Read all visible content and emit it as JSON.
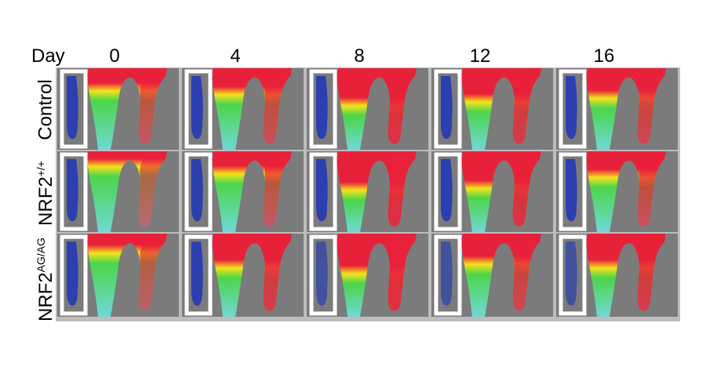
{
  "figure": {
    "axis_label": "Day",
    "columns": [
      "0",
      "4",
      "8",
      "12",
      "16"
    ],
    "rows": [
      {
        "label": "Control",
        "sup": ""
      },
      {
        "label": "NRF2",
        "sup": "+/+"
      },
      {
        "label": "NRF2",
        "sup": "AG/AG"
      }
    ]
  },
  "colors": {
    "background": "#7b7b7b",
    "high": "#e8213a",
    "mid": "#f5e21c",
    "low": "#4cd64a",
    "lowest": "#2b3fb0",
    "box": "#ffffff"
  }
}
